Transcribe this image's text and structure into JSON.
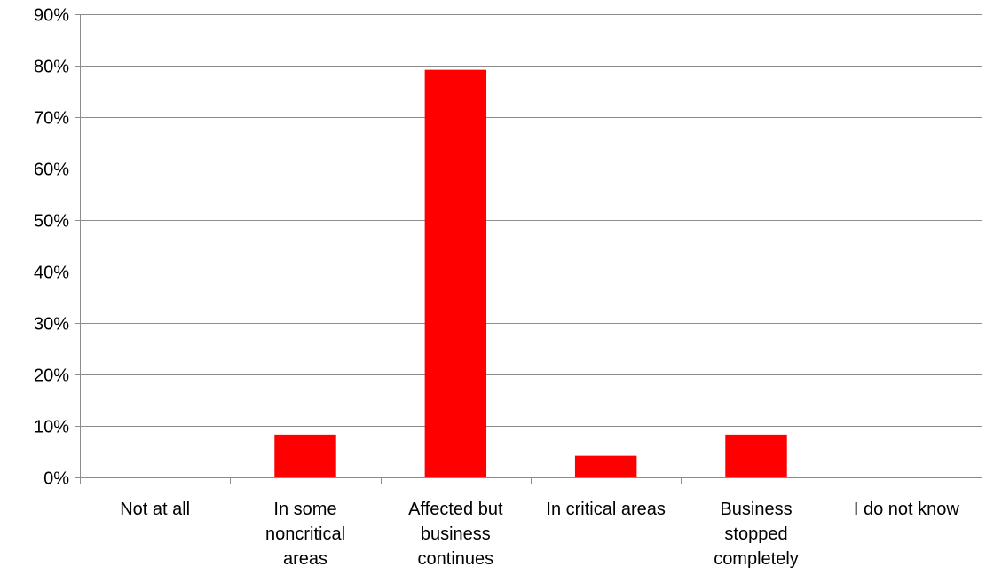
{
  "chart_data": {
    "type": "bar",
    "categories": [
      [
        "Not at all"
      ],
      [
        "In some",
        "noncritical",
        "areas"
      ],
      [
        "Affected but",
        "business",
        "continues"
      ],
      [
        "In critical areas"
      ],
      [
        "Business",
        "stopped",
        "completely"
      ],
      [
        "I do not know"
      ]
    ],
    "values": [
      0,
      8.3,
      79.2,
      4.2,
      8.3,
      0
    ],
    "ylim": [
      0,
      90
    ],
    "yticks": [
      0,
      10,
      20,
      30,
      40,
      50,
      60,
      70,
      80,
      90
    ],
    "ytick_labels": [
      "0%",
      "10%",
      "20%",
      "30%",
      "40%",
      "50%",
      "60%",
      "70%",
      "80%",
      "90%"
    ],
    "grid": true,
    "legend": "none",
    "title": "",
    "xlabel": "",
    "ylabel": "",
    "colors": {
      "bar": "#ff0000",
      "grid": "#8c8c8c",
      "axis": "#8c8c8c"
    }
  }
}
